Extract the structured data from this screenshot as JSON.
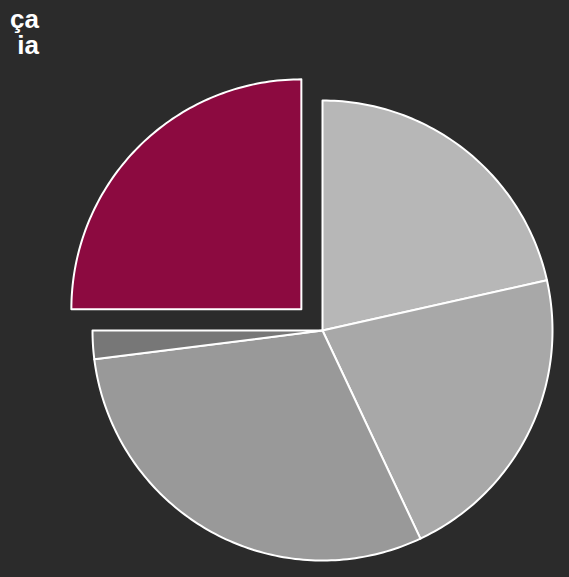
{
  "chart_data": {
    "type": "pie",
    "title": "ça\nia",
    "categories": [
      null,
      null,
      null,
      null,
      null
    ],
    "values": [
      21.5,
      21.5,
      30,
      2,
      25
    ],
    "colors": [
      "#b7b7b7",
      "#a8a8a8",
      "#999999",
      "#777777",
      "#8c0a40"
    ],
    "data_labels": false
  }
}
